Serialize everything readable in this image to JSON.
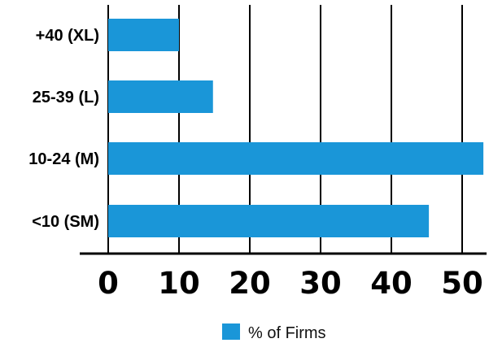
{
  "chart_data": {
    "type": "bar",
    "orientation": "horizontal",
    "categories": [
      "+40 (XL)",
      "25-39 (L)",
      "10-24 (M)",
      "<10 (SM)"
    ],
    "series": [
      {
        "name": "% of Firms",
        "values": [
          10,
          14.8,
          53,
          45.3
        ],
        "color": "#1a96d8"
      }
    ],
    "x_ticks": [
      "0",
      "10",
      "20",
      "30",
      "40",
      "50"
    ],
    "xlim": [
      0,
      53
    ],
    "grid": true,
    "legend_position": "bottom-center",
    "title": "",
    "xlabel": "",
    "ylabel": ""
  }
}
